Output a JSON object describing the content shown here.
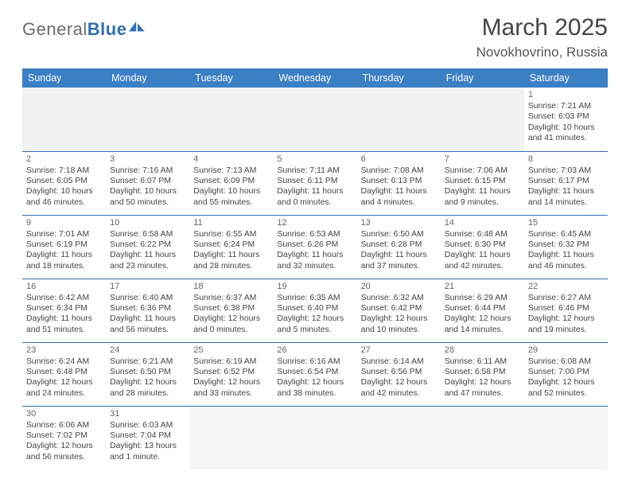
{
  "brand": {
    "part1": "General",
    "part2": "Blue"
  },
  "title": "March 2025",
  "location": "Novokhovrino, Russia",
  "colors": {
    "header_bg": "#3b7fc4",
    "rule": "#2f6fb0",
    "text": "#444444"
  },
  "weekdays": [
    "Sunday",
    "Monday",
    "Tuesday",
    "Wednesday",
    "Thursday",
    "Friday",
    "Saturday"
  ],
  "weeks": [
    [
      null,
      null,
      null,
      null,
      null,
      null,
      {
        "n": "1",
        "sr": "Sunrise: 7:21 AM",
        "ss": "Sunset: 6:03 PM",
        "d1": "Daylight: 10 hours",
        "d2": "and 41 minutes."
      }
    ],
    [
      {
        "n": "2",
        "sr": "Sunrise: 7:18 AM",
        "ss": "Sunset: 6:05 PM",
        "d1": "Daylight: 10 hours",
        "d2": "and 46 minutes."
      },
      {
        "n": "3",
        "sr": "Sunrise: 7:16 AM",
        "ss": "Sunset: 6:07 PM",
        "d1": "Daylight: 10 hours",
        "d2": "and 50 minutes."
      },
      {
        "n": "4",
        "sr": "Sunrise: 7:13 AM",
        "ss": "Sunset: 6:09 PM",
        "d1": "Daylight: 10 hours",
        "d2": "and 55 minutes."
      },
      {
        "n": "5",
        "sr": "Sunrise: 7:11 AM",
        "ss": "Sunset: 6:11 PM",
        "d1": "Daylight: 11 hours",
        "d2": "and 0 minutes."
      },
      {
        "n": "6",
        "sr": "Sunrise: 7:08 AM",
        "ss": "Sunset: 6:13 PM",
        "d1": "Daylight: 11 hours",
        "d2": "and 4 minutes."
      },
      {
        "n": "7",
        "sr": "Sunrise: 7:06 AM",
        "ss": "Sunset: 6:15 PM",
        "d1": "Daylight: 11 hours",
        "d2": "and 9 minutes."
      },
      {
        "n": "8",
        "sr": "Sunrise: 7:03 AM",
        "ss": "Sunset: 6:17 PM",
        "d1": "Daylight: 11 hours",
        "d2": "and 14 minutes."
      }
    ],
    [
      {
        "n": "9",
        "sr": "Sunrise: 7:01 AM",
        "ss": "Sunset: 6:19 PM",
        "d1": "Daylight: 11 hours",
        "d2": "and 18 minutes."
      },
      {
        "n": "10",
        "sr": "Sunrise: 6:58 AM",
        "ss": "Sunset: 6:22 PM",
        "d1": "Daylight: 11 hours",
        "d2": "and 23 minutes."
      },
      {
        "n": "11",
        "sr": "Sunrise: 6:55 AM",
        "ss": "Sunset: 6:24 PM",
        "d1": "Daylight: 11 hours",
        "d2": "and 28 minutes."
      },
      {
        "n": "12",
        "sr": "Sunrise: 6:53 AM",
        "ss": "Sunset: 6:26 PM",
        "d1": "Daylight: 11 hours",
        "d2": "and 32 minutes."
      },
      {
        "n": "13",
        "sr": "Sunrise: 6:50 AM",
        "ss": "Sunset: 6:28 PM",
        "d1": "Daylight: 11 hours",
        "d2": "and 37 minutes."
      },
      {
        "n": "14",
        "sr": "Sunrise: 6:48 AM",
        "ss": "Sunset: 6:30 PM",
        "d1": "Daylight: 11 hours",
        "d2": "and 42 minutes."
      },
      {
        "n": "15",
        "sr": "Sunrise: 6:45 AM",
        "ss": "Sunset: 6:32 PM",
        "d1": "Daylight: 11 hours",
        "d2": "and 46 minutes."
      }
    ],
    [
      {
        "n": "16",
        "sr": "Sunrise: 6:42 AM",
        "ss": "Sunset: 6:34 PM",
        "d1": "Daylight: 11 hours",
        "d2": "and 51 minutes."
      },
      {
        "n": "17",
        "sr": "Sunrise: 6:40 AM",
        "ss": "Sunset: 6:36 PM",
        "d1": "Daylight: 11 hours",
        "d2": "and 56 minutes."
      },
      {
        "n": "18",
        "sr": "Sunrise: 6:37 AM",
        "ss": "Sunset: 6:38 PM",
        "d1": "Daylight: 12 hours",
        "d2": "and 0 minutes."
      },
      {
        "n": "19",
        "sr": "Sunrise: 6:35 AM",
        "ss": "Sunset: 6:40 PM",
        "d1": "Daylight: 12 hours",
        "d2": "and 5 minutes."
      },
      {
        "n": "20",
        "sr": "Sunrise: 6:32 AM",
        "ss": "Sunset: 6:42 PM",
        "d1": "Daylight: 12 hours",
        "d2": "and 10 minutes."
      },
      {
        "n": "21",
        "sr": "Sunrise: 6:29 AM",
        "ss": "Sunset: 6:44 PM",
        "d1": "Daylight: 12 hours",
        "d2": "and 14 minutes."
      },
      {
        "n": "22",
        "sr": "Sunrise: 6:27 AM",
        "ss": "Sunset: 6:46 PM",
        "d1": "Daylight: 12 hours",
        "d2": "and 19 minutes."
      }
    ],
    [
      {
        "n": "23",
        "sr": "Sunrise: 6:24 AM",
        "ss": "Sunset: 6:48 PM",
        "d1": "Daylight: 12 hours",
        "d2": "and 24 minutes."
      },
      {
        "n": "24",
        "sr": "Sunrise: 6:21 AM",
        "ss": "Sunset: 6:50 PM",
        "d1": "Daylight: 12 hours",
        "d2": "and 28 minutes."
      },
      {
        "n": "25",
        "sr": "Sunrise: 6:19 AM",
        "ss": "Sunset: 6:52 PM",
        "d1": "Daylight: 12 hours",
        "d2": "and 33 minutes."
      },
      {
        "n": "26",
        "sr": "Sunrise: 6:16 AM",
        "ss": "Sunset: 6:54 PM",
        "d1": "Daylight: 12 hours",
        "d2": "and 38 minutes."
      },
      {
        "n": "27",
        "sr": "Sunrise: 6:14 AM",
        "ss": "Sunset: 6:56 PM",
        "d1": "Daylight: 12 hours",
        "d2": "and 42 minutes."
      },
      {
        "n": "28",
        "sr": "Sunrise: 6:11 AM",
        "ss": "Sunset: 6:58 PM",
        "d1": "Daylight: 12 hours",
        "d2": "and 47 minutes."
      },
      {
        "n": "29",
        "sr": "Sunrise: 6:08 AM",
        "ss": "Sunset: 7:00 PM",
        "d1": "Daylight: 12 hours",
        "d2": "and 52 minutes."
      }
    ],
    [
      {
        "n": "30",
        "sr": "Sunrise: 6:06 AM",
        "ss": "Sunset: 7:02 PM",
        "d1": "Daylight: 12 hours",
        "d2": "and 56 minutes."
      },
      {
        "n": "31",
        "sr": "Sunrise: 6:03 AM",
        "ss": "Sunset: 7:04 PM",
        "d1": "Daylight: 13 hours",
        "d2": "and 1 minute."
      },
      null,
      null,
      null,
      null,
      null
    ]
  ]
}
